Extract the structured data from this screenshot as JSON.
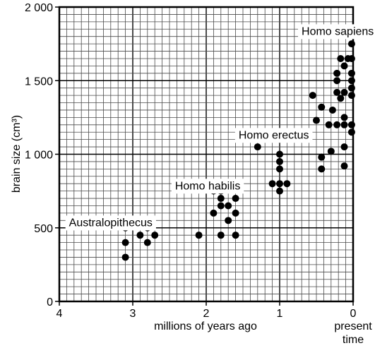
{
  "chart_data": {
    "type": "scatter",
    "xlabel": "millions of years ago",
    "ylabel": "brain size (cm³)",
    "xlim": [
      4,
      0
    ],
    "ylim": [
      0,
      2000
    ],
    "x_ticks": [
      {
        "value": 4,
        "label": "4"
      },
      {
        "value": 3,
        "label": "3"
      },
      {
        "value": 2,
        "label": "2"
      },
      {
        "value": 1,
        "label": "1"
      },
      {
        "value": 0,
        "label": "0"
      }
    ],
    "x_end_label": [
      "present",
      "time"
    ],
    "y_ticks": [
      {
        "value": 0,
        "label": "0"
      },
      {
        "value": 500,
        "label": "500"
      },
      {
        "value": 1000,
        "label": "1 000"
      },
      {
        "value": 1500,
        "label": "1 500"
      },
      {
        "value": 2000,
        "label": "2 000"
      }
    ],
    "grid": true,
    "point_color": "#000000",
    "groups": [
      {
        "name": "Australopithecus",
        "anchor": [
          3.3,
          540
        ]
      },
      {
        "name": "Homo habilis",
        "anchor": [
          1.98,
          790
        ]
      },
      {
        "name": "Homo erectus",
        "anchor": [
          1.08,
          1135
        ]
      },
      {
        "name": "Homo sapiens",
        "anchor": [
          0.21,
          1840
        ]
      }
    ],
    "points": [
      {
        "x": 3.1,
        "y": 500
      },
      {
        "x": 3.1,
        "y": 400
      },
      {
        "x": 3.1,
        "y": 300
      },
      {
        "x": 2.9,
        "y": 450
      },
      {
        "x": 2.8,
        "y": 500
      },
      {
        "x": 2.8,
        "y": 400
      },
      {
        "x": 2.7,
        "y": 450
      },
      {
        "x": 2.1,
        "y": 450
      },
      {
        "x": 1.9,
        "y": 750
      },
      {
        "x": 1.9,
        "y": 600
      },
      {
        "x": 1.8,
        "y": 750
      },
      {
        "x": 1.8,
        "y": 700
      },
      {
        "x": 1.8,
        "y": 650
      },
      {
        "x": 1.8,
        "y": 450
      },
      {
        "x": 1.7,
        "y": 550
      },
      {
        "x": 1.7,
        "y": 650
      },
      {
        "x": 1.6,
        "y": 800
      },
      {
        "x": 1.6,
        "y": 700
      },
      {
        "x": 1.6,
        "y": 600
      },
      {
        "x": 1.6,
        "y": 450
      },
      {
        "x": 1.3,
        "y": 1050
      },
      {
        "x": 1.1,
        "y": 800
      },
      {
        "x": 1.0,
        "y": 1100
      },
      {
        "x": 1.0,
        "y": 1000
      },
      {
        "x": 1.0,
        "y": 950
      },
      {
        "x": 1.0,
        "y": 900
      },
      {
        "x": 1.0,
        "y": 800
      },
      {
        "x": 1.0,
        "y": 750
      },
      {
        "x": 0.9,
        "y": 800
      },
      {
        "x": 0.55,
        "y": 1400
      },
      {
        "x": 0.5,
        "y": 1230
      },
      {
        "x": 0.43,
        "y": 1320
      },
      {
        "x": 0.43,
        "y": 980
      },
      {
        "x": 0.43,
        "y": 900
      },
      {
        "x": 0.33,
        "y": 1200
      },
      {
        "x": 0.3,
        "y": 1020
      },
      {
        "x": 0.28,
        "y": 1300
      },
      {
        "x": 0.22,
        "y": 1550
      },
      {
        "x": 0.22,
        "y": 1500
      },
      {
        "x": 0.22,
        "y": 1420
      },
      {
        "x": 0.22,
        "y": 1200
      },
      {
        "x": 0.17,
        "y": 1650
      },
      {
        "x": 0.17,
        "y": 1380
      },
      {
        "x": 0.12,
        "y": 1600
      },
      {
        "x": 0.12,
        "y": 1420
      },
      {
        "x": 0.12,
        "y": 1250
      },
      {
        "x": 0.12,
        "y": 1200
      },
      {
        "x": 0.12,
        "y": 1050
      },
      {
        "x": 0.12,
        "y": 920
      },
      {
        "x": 0.07,
        "y": 1650
      },
      {
        "x": 0.02,
        "y": 1750
      },
      {
        "x": 0.02,
        "y": 1650
      },
      {
        "x": 0.02,
        "y": 1550
      },
      {
        "x": 0.02,
        "y": 1500
      },
      {
        "x": 0.02,
        "y": 1450
      },
      {
        "x": 0.02,
        "y": 1400
      },
      {
        "x": 0.02,
        "y": 1200
      },
      {
        "x": 0.02,
        "y": 1150
      }
    ]
  }
}
